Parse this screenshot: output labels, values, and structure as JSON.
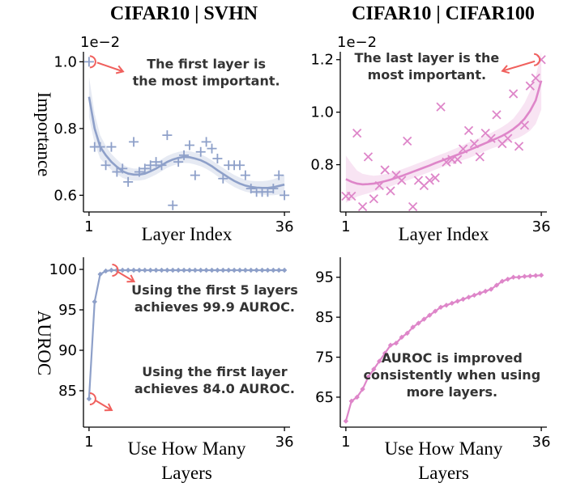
{
  "titles": {
    "left": "CIFAR10 | SVHN",
    "right": "CIFAR10 | CIFAR100"
  },
  "row_labels": {
    "top": "Importance",
    "bottom": "AUROC"
  },
  "colors": {
    "blue": "#8ea0c9",
    "pink": "#de86c9",
    "arrow": "#f0605d"
  },
  "chart_data": [
    {
      "id": "svhn-importance",
      "type": "scatter",
      "marker": "plus",
      "trend": "smooth-fit",
      "title": "CIFAR10 | SVHN",
      "xlabel": "Layer Index",
      "ylabel": "Importance",
      "y_multiplier": "1e−2",
      "xlim": [
        0,
        37
      ],
      "ylim": [
        0.55,
        1.03
      ],
      "xticks": [
        1,
        36
      ],
      "yticks": [
        0.6,
        0.8,
        1.0
      ],
      "ytick_labels": [
        "0.6",
        "0.8",
        "1.0"
      ],
      "x": [
        1,
        2,
        3,
        4,
        5,
        6,
        7,
        8,
        9,
        10,
        11,
        12,
        13,
        14,
        15,
        16,
        17,
        18,
        19,
        20,
        21,
        22,
        23,
        24,
        25,
        26,
        27,
        28,
        29,
        30,
        31,
        32,
        33,
        34,
        35,
        36
      ],
      "y": [
        1.0,
        0.745,
        0.745,
        0.69,
        0.745,
        0.67,
        0.68,
        0.64,
        0.76,
        0.67,
        0.68,
        0.69,
        0.7,
        0.69,
        0.78,
        0.57,
        0.7,
        0.72,
        0.75,
        0.66,
        0.73,
        0.76,
        0.74,
        0.71,
        0.65,
        0.69,
        0.69,
        0.69,
        0.66,
        0.62,
        0.61,
        0.61,
        0.61,
        0.62,
        0.66,
        0.6
      ],
      "trend_x": [
        1,
        2,
        3,
        4,
        5,
        6,
        7,
        8,
        9,
        10,
        11,
        12,
        13,
        14,
        15,
        16,
        17,
        18,
        19,
        20,
        21,
        22,
        23,
        24,
        25,
        26,
        27,
        28,
        29,
        30,
        31,
        32,
        33,
        34,
        35,
        36
      ],
      "trend_y": [
        0.895,
        0.8,
        0.745,
        0.72,
        0.7,
        0.685,
        0.672,
        0.665,
        0.662,
        0.662,
        0.665,
        0.672,
        0.68,
        0.69,
        0.7,
        0.707,
        0.712,
        0.715,
        0.714,
        0.71,
        0.705,
        0.697,
        0.687,
        0.675,
        0.664,
        0.653,
        0.643,
        0.635,
        0.629,
        0.625,
        0.623,
        0.622,
        0.622,
        0.624,
        0.628,
        0.632
      ],
      "band_halfwidth": [
        0.06,
        0.045,
        0.035,
        0.028,
        0.024,
        0.022,
        0.02,
        0.019,
        0.018,
        0.018,
        0.018,
        0.018,
        0.018,
        0.018,
        0.018,
        0.018,
        0.018,
        0.018,
        0.018,
        0.018,
        0.018,
        0.018,
        0.018,
        0.018,
        0.018,
        0.018,
        0.018,
        0.018,
        0.018,
        0.018,
        0.019,
        0.02,
        0.022,
        0.024,
        0.026,
        0.03
      ],
      "annotation": [
        "The first layer is",
        "the most important."
      ],
      "annotation_pos": {
        "x": 22,
        "y": 0.98
      },
      "arrow_target": {
        "x": 1,
        "y": 1.0
      }
    },
    {
      "id": "cifar100-importance",
      "type": "scatter",
      "marker": "x",
      "trend": "smooth-fit",
      "title": "CIFAR10 | CIFAR100",
      "xlabel": "Layer Index",
      "ylabel": "",
      "y_multiplier": "1e−2",
      "xlim": [
        0,
        37
      ],
      "ylim": [
        0.62,
        1.23
      ],
      "xticks": [
        1,
        36
      ],
      "yticks": [
        0.8,
        1.0,
        1.2
      ],
      "ytick_labels": [
        "0.8",
        "1.0",
        "1.2"
      ],
      "x": [
        1,
        2,
        3,
        4,
        5,
        6,
        7,
        8,
        9,
        10,
        11,
        12,
        13,
        14,
        15,
        16,
        17,
        18,
        19,
        20,
        21,
        22,
        23,
        24,
        25,
        26,
        27,
        28,
        29,
        30,
        31,
        32,
        33,
        34,
        35,
        36
      ],
      "y": [
        0.68,
        0.68,
        0.92,
        0.64,
        0.83,
        0.67,
        0.72,
        0.78,
        0.7,
        0.76,
        0.74,
        0.89,
        0.64,
        0.74,
        0.72,
        0.74,
        0.75,
        1.02,
        0.81,
        0.82,
        0.82,
        0.86,
        0.93,
        0.88,
        0.83,
        0.92,
        0.9,
        0.99,
        0.88,
        0.9,
        1.07,
        0.87,
        0.95,
        1.1,
        1.13,
        1.2
      ],
      "trend_x": [
        1,
        2,
        3,
        4,
        5,
        6,
        7,
        8,
        9,
        10,
        11,
        12,
        13,
        14,
        15,
        16,
        17,
        18,
        19,
        20,
        21,
        22,
        23,
        24,
        25,
        26,
        27,
        28,
        29,
        30,
        31,
        32,
        33,
        34,
        35,
        36
      ],
      "trend_y": [
        0.745,
        0.735,
        0.728,
        0.725,
        0.726,
        0.728,
        0.732,
        0.737,
        0.743,
        0.75,
        0.757,
        0.765,
        0.773,
        0.781,
        0.789,
        0.797,
        0.806,
        0.814,
        0.822,
        0.83,
        0.838,
        0.846,
        0.855,
        0.864,
        0.873,
        0.882,
        0.891,
        0.9,
        0.91,
        0.922,
        0.936,
        0.953,
        0.975,
        1.005,
        1.045,
        1.12
      ],
      "band_halfwidth": [
        0.09,
        0.07,
        0.05,
        0.04,
        0.035,
        0.03,
        0.028,
        0.027,
        0.026,
        0.025,
        0.025,
        0.025,
        0.025,
        0.025,
        0.025,
        0.025,
        0.025,
        0.025,
        0.025,
        0.026,
        0.027,
        0.028,
        0.03,
        0.03,
        0.03,
        0.03,
        0.03,
        0.032,
        0.034,
        0.036,
        0.04,
        0.05,
        0.06,
        0.075,
        0.09,
        0.11
      ],
      "annotation": [
        "The last layer is the",
        "most important."
      ],
      "annotation_pos": {
        "x": 15.5,
        "y": 1.19
      },
      "arrow_target": {
        "x": 36,
        "y": 1.2
      }
    },
    {
      "id": "svhn-auroc",
      "type": "line",
      "marker": "diamond",
      "title": "",
      "xlabel": "Use How Many Layers",
      "ylabel": "AUROC",
      "xlim": [
        0,
        37
      ],
      "ylim": [
        80.5,
        101.5
      ],
      "xticks": [
        1,
        36
      ],
      "yticks": [
        85,
        90,
        95,
        100
      ],
      "ytick_labels": [
        "85",
        "90",
        "95",
        "100"
      ],
      "x": [
        1,
        2,
        3,
        4,
        5,
        6,
        7,
        8,
        9,
        10,
        11,
        12,
        13,
        14,
        15,
        16,
        17,
        18,
        19,
        20,
        21,
        22,
        23,
        24,
        25,
        26,
        27,
        28,
        29,
        30,
        31,
        32,
        33,
        34,
        35,
        36
      ],
      "y": [
        84.0,
        96.0,
        99.4,
        99.8,
        99.9,
        99.9,
        99.9,
        99.9,
        99.9,
        99.9,
        99.9,
        99.9,
        99.9,
        99.9,
        99.9,
        99.9,
        99.9,
        99.9,
        99.9,
        99.9,
        99.9,
        99.9,
        99.9,
        99.9,
        99.9,
        99.9,
        99.9,
        99.9,
        99.9,
        99.9,
        99.9,
        99.9,
        99.9,
        99.9,
        99.9,
        99.9
      ],
      "annotations": [
        {
          "lines": [
            "Using the first 5 layers",
            "achieves 99.9 AUROC."
          ],
          "pos": {
            "x": 23.5,
            "y": 96.9
          },
          "arrow_target": {
            "x": 5,
            "y": 99.9
          }
        },
        {
          "lines": [
            "Using the first layer",
            "achieves 84.0 AUROC."
          ],
          "pos": {
            "x": 23.5,
            "y": 86.8
          },
          "arrow_target": {
            "x": 1,
            "y": 84.0
          }
        }
      ]
    },
    {
      "id": "cifar100-auroc",
      "type": "line",
      "marker": "diamond",
      "title": "",
      "xlabel": "Use How Many Layers",
      "ylabel": "",
      "xlim": [
        0,
        37
      ],
      "ylim": [
        57.5,
        100
      ],
      "xticks": [
        1,
        36
      ],
      "yticks": [
        65,
        75,
        85,
        95
      ],
      "ytick_labels": [
        "65",
        "75",
        "85",
        "95"
      ],
      "x": [
        1,
        2,
        3,
        4,
        5,
        6,
        7,
        8,
        9,
        10,
        11,
        12,
        13,
        14,
        15,
        16,
        17,
        18,
        19,
        20,
        21,
        22,
        23,
        24,
        25,
        26,
        27,
        28,
        29,
        30,
        31,
        32,
        33,
        34,
        35,
        36
      ],
      "y": [
        59.0,
        64.0,
        65.0,
        67.0,
        70.0,
        72.0,
        74.0,
        76.0,
        78.0,
        78.5,
        80.0,
        81.0,
        82.5,
        83.5,
        84.5,
        85.5,
        86.5,
        87.5,
        88.0,
        88.5,
        89.0,
        89.5,
        90.0,
        90.5,
        91.0,
        91.5,
        92.0,
        93.0,
        94.0,
        94.5,
        95.0,
        95.0,
        95.2,
        95.3,
        95.4,
        95.5
      ],
      "annotation": [
        "AUROC is improved",
        "consistently when using",
        "more layers."
      ],
      "annotation_pos": {
        "x": 20,
        "y": 73.7
      }
    }
  ]
}
